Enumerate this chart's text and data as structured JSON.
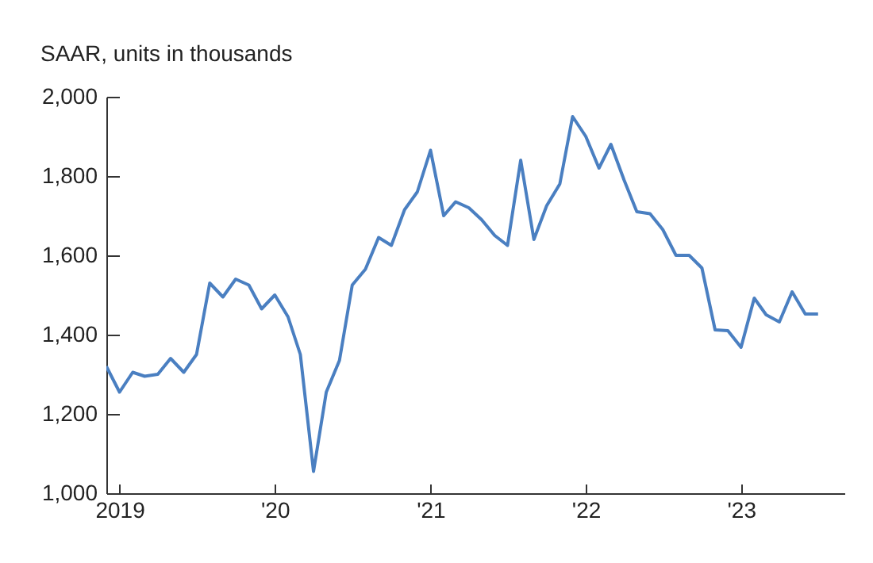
{
  "chart_data": {
    "type": "line",
    "ylabel": "SAAR, units in thousands",
    "x": [
      "2018-12",
      "2019-01",
      "2019-02",
      "2019-03",
      "2019-04",
      "2019-05",
      "2019-06",
      "2019-07",
      "2019-08",
      "2019-09",
      "2019-10",
      "2019-11",
      "2019-12",
      "2020-01",
      "2020-02",
      "2020-03",
      "2020-04",
      "2020-05",
      "2020-06",
      "2020-07",
      "2020-08",
      "2020-09",
      "2020-10",
      "2020-11",
      "2020-12",
      "2021-01",
      "2021-02",
      "2021-03",
      "2021-04",
      "2021-05",
      "2021-06",
      "2021-07",
      "2021-08",
      "2021-09",
      "2021-10",
      "2021-11",
      "2021-12",
      "2022-01",
      "2022-02",
      "2022-03",
      "2022-04",
      "2022-05",
      "2022-06",
      "2022-07",
      "2022-08",
      "2022-09",
      "2022-10",
      "2022-11",
      "2022-12",
      "2023-01",
      "2023-02",
      "2023-03",
      "2023-04",
      "2023-05",
      "2023-06",
      "2023-07"
    ],
    "series": [
      {
        "color": "#4a7fc1",
        "values": [
          1320,
          1255,
          1305,
          1295,
          1300,
          1340,
          1305,
          1350,
          1530,
          1495,
          1540,
          1525,
          1465,
          1500,
          1445,
          1350,
          1055,
          1255,
          1335,
          1525,
          1565,
          1645,
          1625,
          1715,
          1760,
          1865,
          1700,
          1735,
          1720,
          1690,
          1650,
          1625,
          1840,
          1640,
          1725,
          1780,
          1950,
          1900,
          1820,
          1880,
          1790,
          1710,
          1705,
          1665,
          1600,
          1600,
          1568,
          1412,
          1410,
          1368,
          1492,
          1450,
          1432,
          1508,
          1452,
          1452
        ]
      }
    ],
    "xlim": [
      "2018-12",
      "2023-09"
    ],
    "xticks": [
      {
        "value": "2019",
        "label": "2019"
      },
      {
        "value": "2020",
        "label": "'20"
      },
      {
        "value": "2021",
        "label": "'21"
      },
      {
        "value": "2022",
        "label": "'22"
      },
      {
        "value": "2023",
        "label": "'23"
      }
    ],
    "ylim": [
      1000,
      2000
    ],
    "yticks": [
      {
        "value": 1000,
        "label": "1,000"
      },
      {
        "value": 1200,
        "label": "1,200"
      },
      {
        "value": 1400,
        "label": "1,400"
      },
      {
        "value": 1600,
        "label": "1,600"
      },
      {
        "value": 1800,
        "label": "1,800"
      },
      {
        "value": 2000,
        "label": "2,000"
      }
    ]
  }
}
